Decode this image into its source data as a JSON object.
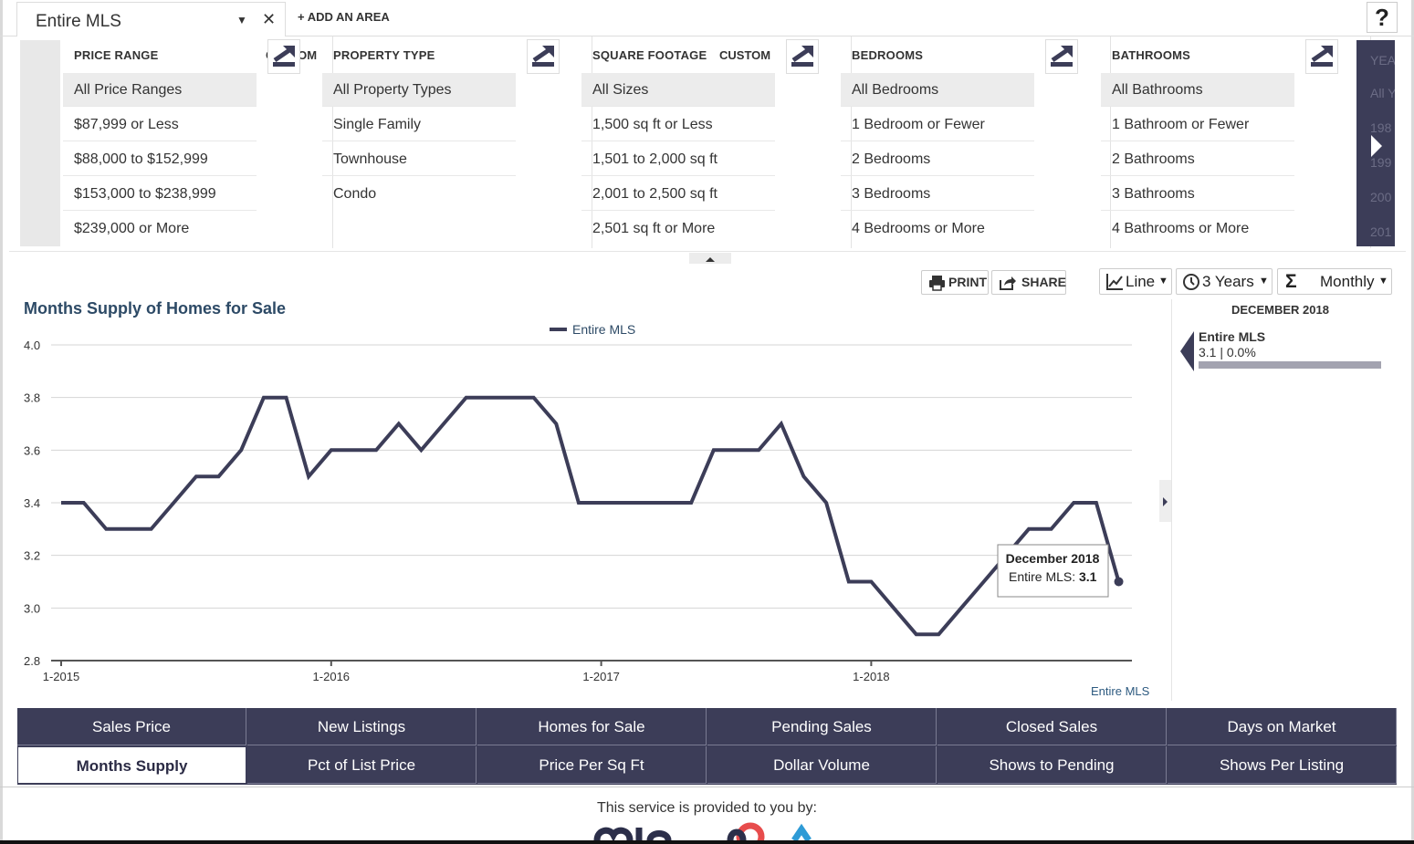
{
  "topbar": {
    "area_name": "Entire MLS",
    "add_area_label": "+ ADD AN AREA",
    "help_label": "?"
  },
  "filters": [
    {
      "id": "price",
      "title": "PRICE RANGE",
      "custom": "CUSTOM",
      "selected": 0,
      "options": [
        "All Price Ranges",
        "$87,999 or Less",
        "$88,000 to $152,999",
        "$153,000 to $238,999",
        "$239,000 or More"
      ]
    },
    {
      "id": "type",
      "title": "PROPERTY TYPE",
      "custom": "",
      "selected": 0,
      "options": [
        "All Property Types",
        "Single Family",
        "Townhouse",
        "Condo"
      ]
    },
    {
      "id": "sqft",
      "title": "SQUARE FOOTAGE",
      "custom": "CUSTOM",
      "selected": 0,
      "options": [
        "All Sizes",
        "1,500 sq ft or Less",
        "1,501 to 2,000 sq ft",
        "2,001 to 2,500 sq ft",
        "2,501 sq ft or More"
      ]
    },
    {
      "id": "beds",
      "title": "BEDROOMS",
      "custom": "",
      "selected": 0,
      "options": [
        "All Bedrooms",
        "1 Bedroom or Fewer",
        "2 Bedrooms",
        "3 Bedrooms",
        "4 Bedrooms or More"
      ]
    },
    {
      "id": "baths",
      "title": "BATHROOMS",
      "custom": "",
      "selected": 0,
      "options": [
        "All Bathrooms",
        "1 Bathroom or Fewer",
        "2 Bathrooms",
        "3 Bathrooms",
        "4 Bathrooms or More"
      ]
    }
  ],
  "filters_overflow": [
    "YEA",
    "All Y",
    "198",
    "199",
    "200",
    "201"
  ],
  "toolbar": {
    "print_label": "PRINT",
    "share_label": "SHARE",
    "chart_type": "Line",
    "range": "3 Years",
    "interval": "Monthly"
  },
  "chart_data": {
    "type": "line",
    "title": "Months Supply of Homes for Sale",
    "series": [
      {
        "name": "Entire MLS",
        "values": [
          3.4,
          3.4,
          3.3,
          3.3,
          3.3,
          3.4,
          3.5,
          3.5,
          3.6,
          3.8,
          3.8,
          3.5,
          3.6,
          3.6,
          3.6,
          3.7,
          3.6,
          3.7,
          3.8,
          3.8,
          3.8,
          3.8,
          3.7,
          3.4,
          3.4,
          3.4,
          3.4,
          3.4,
          3.4,
          3.6,
          3.6,
          3.6,
          3.7,
          3.5,
          3.4,
          3.1,
          3.1,
          3.0,
          2.9,
          2.9,
          3.0,
          3.1,
          3.2,
          3.3,
          3.3,
          3.4,
          3.4,
          3.1
        ]
      }
    ],
    "x_start": "1-2015",
    "x_ticks": [
      "1-2015",
      "1-2016",
      "1-2017",
      "1-2018"
    ],
    "y_ticks": [
      "4.0",
      "3.8",
      "3.6",
      "3.4",
      "3.2",
      "3.0",
      "2.8"
    ],
    "ylim": [
      2.8,
      4.0
    ],
    "grid": true,
    "legend": "top-center",
    "tooltip": {
      "title": "December 2018",
      "label": "Entire MLS:",
      "value": "3.1"
    },
    "footer": "Entire MLS"
  },
  "side_panel": {
    "date": "DECEMBER 2018",
    "name": "Entire MLS",
    "value": "3.1 | 0.0%"
  },
  "metrics": {
    "row1": [
      "Sales Price",
      "New Listings",
      "Homes for Sale",
      "Pending Sales",
      "Closed Sales",
      "Days on Market"
    ],
    "row2": [
      "Months Supply",
      "Pct of List Price",
      "Price Per Sq Ft",
      "Dollar Volume",
      "Shows to Pending",
      "Shows Per Listing"
    ],
    "active": "Months Supply"
  },
  "footer": {
    "provided_by": "This service is provided to you by:"
  },
  "colors": {
    "navy": "#3c3d58",
    "line": "#3c3d58",
    "title": "#2d4a66"
  }
}
